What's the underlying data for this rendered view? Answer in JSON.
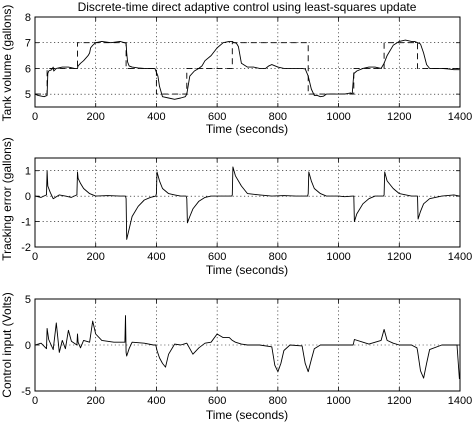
{
  "figure_title": "Discrete-time direct adaptive control using least-squares update",
  "chart_data": [
    {
      "type": "line",
      "title": "Discrete-time direct adaptive control using least-squares update",
      "xlabel": "Time (seconds)",
      "ylabel": "Tank volume (gallons)",
      "xlim": [
        0,
        1400
      ],
      "ylim": [
        4.5,
        8
      ],
      "xticks": [
        0,
        200,
        400,
        600,
        800,
        1000,
        1200,
        1400
      ],
      "yticks": [
        5,
        6,
        7,
        8
      ],
      "grid": true,
      "series": [
        {
          "style": "solid",
          "x": [
            0,
            10,
            30,
            40,
            42,
            45,
            55,
            60,
            62,
            70,
            90,
            110,
            130,
            140,
            142,
            150,
            160,
            175,
            180,
            183,
            190,
            200,
            220,
            250,
            280,
            295,
            300,
            302,
            305,
            310,
            320,
            340,
            360,
            380,
            395,
            405,
            410,
            420,
            440,
            460,
            480,
            495,
            500,
            510,
            525,
            540,
            545,
            550,
            560,
            580,
            600,
            620,
            640,
            650,
            655,
            660,
            665,
            670,
            680,
            700,
            720,
            740,
            750,
            760,
            770,
            780,
            800,
            820,
            840,
            860,
            880,
            890,
            900,
            910,
            920,
            930,
            940,
            950,
            960,
            980,
            1000,
            1020,
            1040,
            1045,
            1050,
            1060,
            1080,
            1100,
            1120,
            1140,
            1145,
            1150,
            1160,
            1180,
            1200,
            1220,
            1240,
            1250,
            1260,
            1270,
            1280,
            1290,
            1300,
            1320,
            1340,
            1360,
            1380,
            1398
          ],
          "y": [
            5.0,
            4.95,
            4.9,
            4.95,
            5.8,
            5.9,
            5.95,
            6.05,
            5.9,
            6.0,
            6.05,
            6.05,
            6.0,
            6.0,
            6.1,
            6.2,
            6.3,
            6.5,
            6.6,
            6.8,
            6.9,
            7.0,
            7.05,
            7.0,
            7.05,
            7.0,
            6.98,
            6.6,
            6.25,
            6.1,
            6.05,
            6.02,
            6.0,
            6.0,
            6.0,
            5.7,
            5.3,
            4.9,
            4.85,
            4.8,
            4.85,
            4.9,
            5.0,
            5.7,
            5.9,
            6.0,
            6.05,
            6.1,
            6.3,
            6.5,
            6.8,
            7.0,
            7.05,
            7.05,
            7.0,
            7.0,
            6.95,
            6.85,
            6.2,
            6.05,
            6.05,
            6.0,
            6.0,
            6.0,
            6.1,
            6.15,
            6.05,
            6.0,
            6.0,
            6.0,
            6.0,
            5.98,
            5.7,
            5.2,
            4.95,
            4.95,
            4.9,
            4.92,
            5.0,
            5.0,
            5.0,
            5.0,
            5.05,
            5.0,
            5.8,
            5.9,
            6.0,
            6.05,
            6.05,
            6.0,
            6.1,
            6.2,
            6.5,
            6.9,
            7.05,
            7.1,
            7.05,
            7.05,
            7.0,
            6.95,
            6.6,
            6.15,
            6.0,
            6.0,
            6.0,
            5.98,
            5.95,
            5.95
          ]
        },
        {
          "style": "dashed",
          "x": [
            0,
            40,
            40,
            140,
            140,
            300,
            300,
            400,
            400,
            500,
            500,
            650,
            650,
            900,
            900,
            1050,
            1050,
            1150,
            1150,
            1260,
            1260,
            1400
          ],
          "y": [
            5,
            5,
            6,
            6,
            7,
            7,
            6,
            6,
            5,
            5,
            6,
            6,
            7,
            7,
            5,
            5,
            6,
            6,
            7,
            7,
            6,
            6
          ]
        }
      ]
    },
    {
      "type": "line",
      "xlabel": "Time (seconds)",
      "ylabel": "Tracking error (gallons)",
      "xlim": [
        0,
        1400
      ],
      "ylim": [
        -2,
        1.5
      ],
      "xticks": [
        0,
        200,
        400,
        600,
        800,
        1000,
        1200,
        1400
      ],
      "yticks": [
        -2,
        -1,
        0,
        1
      ],
      "grid": true,
      "series": [
        {
          "style": "solid",
          "x": [
            0,
            20,
            38,
            40,
            42,
            50,
            60,
            80,
            100,
            120,
            138,
            140,
            142,
            150,
            160,
            180,
            200,
            240,
            280,
            298,
            300,
            302,
            310,
            320,
            340,
            360,
            380,
            398,
            400,
            402,
            410,
            420,
            440,
            460,
            480,
            498,
            500,
            502,
            510,
            520,
            540,
            560,
            580,
            600,
            620,
            648,
            650,
            652,
            660,
            680,
            700,
            740,
            780,
            820,
            860,
            898,
            900,
            902,
            910,
            920,
            940,
            960,
            980,
            1000,
            1020,
            1048,
            1050,
            1052,
            1060,
            1080,
            1100,
            1120,
            1148,
            1150,
            1152,
            1160,
            1180,
            1200,
            1240,
            1258,
            1260,
            1262,
            1270,
            1280,
            1300,
            1340,
            1380,
            1398
          ],
          "y": [
            0.0,
            -0.05,
            0.05,
            1.0,
            0.4,
            0.15,
            -0.1,
            0.05,
            0.0,
            -0.05,
            0.05,
            0.95,
            0.7,
            0.5,
            0.3,
            0.1,
            0.0,
            0.02,
            0.0,
            0.0,
            -0.1,
            -1.7,
            -1.3,
            -0.8,
            -0.4,
            -0.15,
            -0.05,
            0.0,
            0.1,
            0.95,
            0.6,
            0.3,
            0.1,
            0.05,
            0.0,
            0.0,
            -0.1,
            -1.05,
            -0.8,
            -0.5,
            -0.2,
            -0.05,
            0.0,
            0.0,
            0.0,
            0.0,
            0.05,
            1.15,
            0.8,
            0.4,
            0.1,
            0.05,
            0.0,
            0.02,
            0.0,
            0.0,
            0.1,
            0.95,
            0.6,
            0.3,
            0.1,
            0.0,
            0.0,
            0.0,
            -0.02,
            0.0,
            0.0,
            -1.0,
            -0.7,
            -0.3,
            -0.1,
            0.0,
            0.0,
            0.05,
            0.95,
            0.6,
            0.3,
            0.1,
            0.0,
            0.0,
            0.0,
            -0.9,
            -0.6,
            -0.3,
            -0.1,
            0.0,
            0.05,
            0.0
          ]
        }
      ]
    },
    {
      "type": "line",
      "xlabel": "Time (seconds)",
      "ylabel": "Control input (Volts)",
      "xlim": [
        0,
        1400
      ],
      "ylim": [
        -5,
        5
      ],
      "xticks": [
        0,
        200,
        400,
        600,
        800,
        1000,
        1200,
        1400
      ],
      "yticks": [
        -5,
        0,
        5
      ],
      "grid": true,
      "series": [
        {
          "style": "solid",
          "x": [
            0,
            20,
            38,
            40,
            45,
            60,
            70,
            80,
            90,
            100,
            110,
            120,
            138,
            140,
            142,
            150,
            160,
            180,
            190,
            200,
            220,
            260,
            296,
            298,
            300,
            302,
            310,
            320,
            360,
            390,
            398,
            402,
            410,
            420,
            430,
            440,
            460,
            480,
            500,
            520,
            540,
            560,
            580,
            600,
            620,
            640,
            650,
            660,
            680,
            700,
            740,
            780,
            790,
            800,
            810,
            820,
            840,
            880,
            890,
            900,
            910,
            920,
            940,
            980,
            1020,
            1048,
            1050,
            1052,
            1080,
            1100,
            1140,
            1150,
            1160,
            1180,
            1200,
            1240,
            1258,
            1260,
            1270,
            1280,
            1290,
            1300,
            1340,
            1370,
            1390,
            1398
          ],
          "y": [
            0.0,
            0.2,
            -0.4,
            1.8,
            0.6,
            -0.5,
            2.4,
            -0.8,
            0.5,
            -0.4,
            1.6,
            0.4,
            0.0,
            1.2,
            0.3,
            -0.3,
            0.5,
            0.3,
            2.6,
            1.2,
            0.5,
            0.3,
            0.3,
            3.2,
            -0.8,
            -1.2,
            -0.4,
            0.3,
            0.2,
            0.0,
            0.0,
            -0.6,
            -1.4,
            -2.0,
            -2.4,
            -1.0,
            0.1,
            0.0,
            0.2,
            -1.0,
            -0.3,
            0.2,
            0.3,
            1.2,
            0.8,
            0.8,
            0.5,
            0.3,
            0.1,
            0.0,
            0.0,
            -0.2,
            -2.2,
            -2.9,
            -2.0,
            -0.6,
            0.0,
            -0.1,
            -2.0,
            -2.9,
            -1.6,
            -0.4,
            0.0,
            0.0,
            0.0,
            0.0,
            0.3,
            0.6,
            0.3,
            0.1,
            0.5,
            1.7,
            0.5,
            0.2,
            0.0,
            0.0,
            -0.3,
            -0.6,
            -2.8,
            -3.6,
            -2.0,
            -0.5,
            0.0,
            0.0,
            0.0,
            -3.7
          ]
        }
      ]
    }
  ]
}
